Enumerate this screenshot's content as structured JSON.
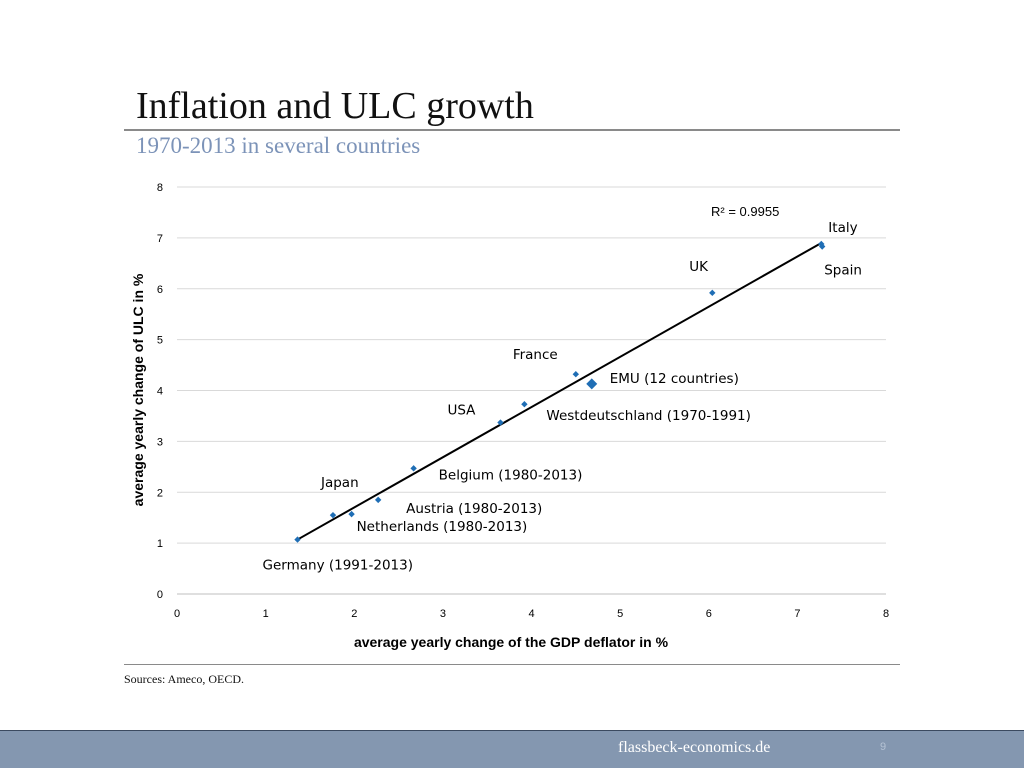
{
  "slide": {
    "title": "Inflation and ULC growth",
    "subtitle": "1970-2013 in several countries",
    "sources": "Sources: Ameco, OECD.",
    "footer_site": "flassbeck-economics.de",
    "footer_page": "9"
  },
  "colors": {
    "marker": "#1f6eb5",
    "trendline": "#000000",
    "gridline": "#d9d9d9",
    "footer_bg": "#8497b0",
    "subtitle": "#7c93b8"
  },
  "chart_data": {
    "type": "scatter",
    "xlabel": "average yearly change of the GDP deflator in %",
    "ylabel": "average yearly change of ULC in %",
    "xlim": [
      0,
      8
    ],
    "ylim": [
      0,
      8
    ],
    "xticks": [
      "0",
      "1",
      "2",
      "3",
      "4",
      "5",
      "6",
      "7",
      "8"
    ],
    "yticks": [
      "0",
      "1",
      "2",
      "3",
      "4",
      "5",
      "6",
      "7",
      "8"
    ],
    "grid": "horizontal",
    "trendline": {
      "x": [
        1.36,
        7.27
      ],
      "y": [
        1.07,
        6.9
      ]
    },
    "r_squared_label": "R² = 0.9955",
    "points": [
      {
        "label": "Germany (1991-2013)",
        "x": 1.36,
        "y": 1.07
      },
      {
        "label": "Japan",
        "x": 1.76,
        "y": 1.55
      },
      {
        "label": "Netherlands (1980-2013)",
        "x": 1.97,
        "y": 1.57
      },
      {
        "label": "Austria (1980-2013)",
        "x": 2.27,
        "y": 1.85
      },
      {
        "label": "Belgium (1980-2013)",
        "x": 2.67,
        "y": 2.47
      },
      {
        "label": "USA",
        "x": 3.65,
        "y": 3.37
      },
      {
        "label": "Westdeutschland (1970-1991)",
        "x": 3.92,
        "y": 3.73
      },
      {
        "label": "France",
        "x": 4.5,
        "y": 4.32
      },
      {
        "label": "EMU (12 countries)",
        "x": 4.68,
        "y": 4.13,
        "highlight": true
      },
      {
        "label": "UK",
        "x": 6.04,
        "y": 5.92
      },
      {
        "label": "Italy",
        "x": 7.27,
        "y": 6.88
      },
      {
        "label": "Spain",
        "x": 7.28,
        "y": 6.83
      }
    ]
  }
}
